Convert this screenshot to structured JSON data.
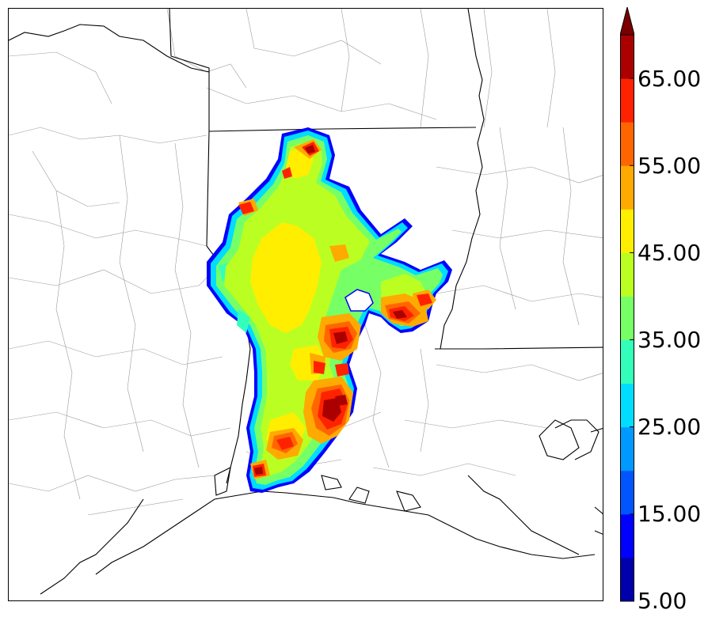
{
  "colorbar": {
    "labels": [
      "65.00",
      "55.00",
      "45.00",
      "35.00",
      "25.00",
      "15.00",
      "5.00"
    ],
    "levels": [
      5,
      10,
      15,
      20,
      25,
      30,
      35,
      40,
      45,
      50,
      55,
      60,
      65,
      70
    ],
    "colors": [
      "#0000aa",
      "#0000ff",
      "#0055ff",
      "#0099ff",
      "#00ddff",
      "#33ffbb",
      "#77ff66",
      "#bbff22",
      "#ffee00",
      "#ffaa00",
      "#ff6600",
      "#ff2200",
      "#aa0000"
    ],
    "extend_color": "#7a0000"
  },
  "map": {
    "field_colors": {
      "low": "#0000ff",
      "edge": "#00ddff",
      "cyan_green": "#33ffbb",
      "green": "#77ff66",
      "yellow_green": "#bbff22",
      "yellow": "#ffee00",
      "orange": "#ffaa00",
      "red_orange": "#ff6600",
      "red": "#ff2200",
      "dark_red": "#aa0000"
    }
  }
}
